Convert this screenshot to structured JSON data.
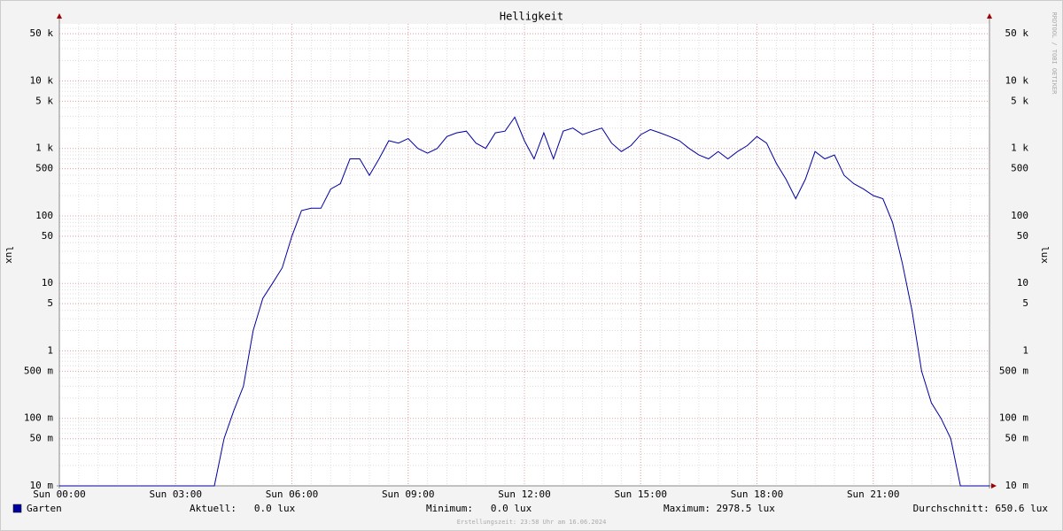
{
  "chart_data": {
    "type": "line",
    "title": "Helligkeit",
    "y_label": "lux",
    "watermark": "RRDTOOL / TOBI OETIKER",
    "footer": "Erstellungszeit: 23:58 Uhr am 16.06.2024",
    "log_scale": true,
    "grid": true,
    "xlim": [
      0,
      24
    ],
    "xticks": [
      {
        "value": 0,
        "label": "Sun 00:00"
      },
      {
        "value": 3,
        "label": "Sun 03:00"
      },
      {
        "value": 6,
        "label": "Sun 06:00"
      },
      {
        "value": 9,
        "label": "Sun 09:00"
      },
      {
        "value": 12,
        "label": "Sun 12:00"
      },
      {
        "value": 15,
        "label": "Sun 15:00"
      },
      {
        "value": 18,
        "label": "Sun 18:00"
      },
      {
        "value": 21,
        "label": "Sun 21:00"
      }
    ],
    "ylim": [
      0.01,
      70000
    ],
    "yticks": [
      {
        "value": 0.01,
        "label": "10 m"
      },
      {
        "value": 0.05,
        "label": "50 m"
      },
      {
        "value": 0.1,
        "label": "100 m"
      },
      {
        "value": 0.5,
        "label": "500 m"
      },
      1,
      5,
      10,
      50,
      100,
      500,
      {
        "value": 1000,
        "label": "1 k"
      },
      {
        "value": 5000,
        "label": "5 k"
      },
      {
        "value": 10000,
        "label": "10 k"
      },
      {
        "value": 50000,
        "label": "50 k"
      }
    ],
    "x": [
      0,
      0.25,
      0.5,
      0.75,
      1,
      1.25,
      1.5,
      1.75,
      2,
      2.25,
      2.5,
      2.75,
      3,
      3.25,
      3.5,
      3.75,
      4,
      4.25,
      4.5,
      4.75,
      5,
      5.25,
      5.5,
      5.75,
      6,
      6.25,
      6.5,
      6.75,
      7,
      7.25,
      7.5,
      7.75,
      8,
      8.25,
      8.5,
      8.75,
      9,
      9.25,
      9.5,
      9.75,
      10,
      10.25,
      10.5,
      10.75,
      11,
      11.25,
      11.5,
      11.75,
      12,
      12.25,
      12.5,
      12.75,
      13,
      13.25,
      13.5,
      13.75,
      14,
      14.25,
      14.5,
      14.75,
      15,
      15.25,
      15.5,
      15.75,
      16,
      16.25,
      16.5,
      16.75,
      17,
      17.25,
      17.5,
      17.75,
      18,
      18.25,
      18.5,
      18.75,
      19,
      19.25,
      19.5,
      19.75,
      20,
      20.25,
      20.5,
      20.75,
      21,
      21.25,
      21.5,
      21.75,
      22,
      22.25,
      22.5,
      22.75,
      23,
      23.25,
      23.5,
      23.75,
      24
    ],
    "series": [
      {
        "name": "Garten",
        "color": "#0000a0",
        "values": [
          0,
          0,
          0,
          0,
          0,
          0,
          0,
          0,
          0,
          0,
          0,
          0,
          0,
          0,
          0,
          0,
          0,
          0.05,
          0.13,
          0.3,
          2,
          6,
          10,
          17,
          50,
          120,
          130,
          130,
          250,
          300,
          700,
          700,
          400,
          700,
          1300,
          1200,
          1400,
          1000,
          850,
          1000,
          1500,
          1700,
          1800,
          1200,
          1000,
          1700,
          1800,
          2900,
          1300,
          700,
          1700,
          700,
          1800,
          2000,
          1600,
          1800,
          2000,
          1200,
          900,
          1100,
          1600,
          1900,
          1700,
          1500,
          1300,
          1000,
          800,
          700,
          900,
          700,
          900,
          1100,
          1500,
          1200,
          600,
          350,
          180,
          350,
          900,
          700,
          800,
          400,
          300,
          250,
          200,
          180,
          80,
          20,
          4,
          0.5,
          0.17,
          0.1,
          0.05,
          0,
          0,
          0,
          0
        ]
      }
    ],
    "legend": {
      "current": "Aktuell:   0.0 lux",
      "minimum": "Minimum:   0.0 lux",
      "maximum": "Maximum: 2978.5 lux",
      "average": "Durchschnitt: 650.6 lux"
    }
  }
}
